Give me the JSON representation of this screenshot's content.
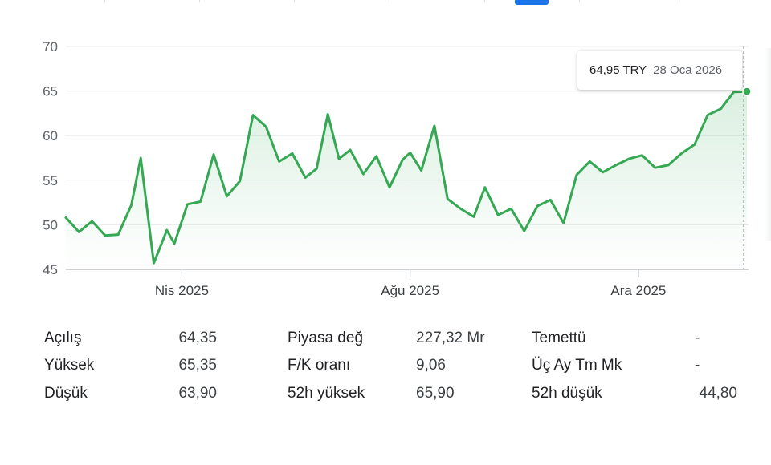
{
  "chart_data": {
    "type": "area",
    "ylim": [
      45,
      70
    ],
    "yticks": [
      "70",
      "65",
      "60",
      "55",
      "50",
      "45"
    ],
    "xticks": [
      "Nis 2025",
      "Ağu 2025",
      "Ara 2025"
    ],
    "grid": true,
    "series": [
      {
        "color": "#34a853",
        "x": [
          "2025-01-29",
          "2025-02-05",
          "2025-02-12",
          "2025-02-19",
          "2025-02-26",
          "2025-03-05",
          "2025-03-10",
          "2025-03-17",
          "2025-03-24",
          "2025-03-28",
          "2025-04-04",
          "2025-04-11",
          "2025-04-18",
          "2025-04-25",
          "2025-05-02",
          "2025-05-09",
          "2025-05-16",
          "2025-05-23",
          "2025-05-30",
          "2025-06-06",
          "2025-06-12",
          "2025-06-18",
          "2025-06-24",
          "2025-06-30",
          "2025-07-07",
          "2025-07-14",
          "2025-07-21",
          "2025-07-28",
          "2025-08-01",
          "2025-08-07",
          "2025-08-14",
          "2025-08-21",
          "2025-08-28",
          "2025-09-04",
          "2025-09-10",
          "2025-09-17",
          "2025-09-24",
          "2025-10-01",
          "2025-10-08",
          "2025-10-15",
          "2025-10-22",
          "2025-10-29",
          "2025-11-05",
          "2025-11-12",
          "2025-11-19",
          "2025-11-26",
          "2025-12-03",
          "2025-12-10",
          "2025-12-17",
          "2025-12-24",
          "2025-12-31",
          "2026-01-07",
          "2026-01-14",
          "2026-01-21",
          "2026-01-28"
        ],
        "values": [
          50.8,
          49.2,
          50.4,
          48.8,
          48.9,
          52.2,
          57.5,
          45.7,
          49.4,
          47.9,
          52.3,
          52.6,
          57.9,
          53.2,
          54.9,
          62.3,
          61.0,
          57.1,
          58.0,
          55.3,
          56.3,
          62.4,
          57.4,
          58.4,
          55.7,
          57.7,
          54.2,
          57.3,
          58.1,
          56.1,
          61.1,
          52.9,
          51.8,
          50.9,
          54.2,
          51.1,
          51.8,
          49.3,
          52.1,
          52.8,
          50.2,
          55.6,
          57.1,
          55.9,
          56.7,
          57.4,
          57.8,
          56.4,
          56.7,
          58.0,
          59.0,
          62.3,
          63.0,
          64.9,
          64.95
        ]
      }
    ]
  },
  "tooltip": {
    "price": "64,95 TRY",
    "date": "28 Oca 2026"
  },
  "stats": {
    "col1": [
      {
        "label": "Açılış",
        "value": "64,35"
      },
      {
        "label": "Yüksek",
        "value": "65,35"
      },
      {
        "label": "Düşük",
        "value": "63,90"
      }
    ],
    "col2": [
      {
        "label": "Piyasa değ",
        "value": "227,32 Mr"
      },
      {
        "label": "F/K oranı",
        "value": "9,06"
      },
      {
        "label": "52h yüksek",
        "value": "65,90"
      }
    ],
    "col3": [
      {
        "label": "Temettü",
        "value": "-"
      },
      {
        "label": "Üç Ay Tm Mk",
        "value": "-"
      },
      {
        "label": "52h düşük",
        "value": "44,80"
      }
    ]
  }
}
